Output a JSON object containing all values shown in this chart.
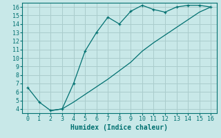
{
  "xlabel": "Humidex (Indice chaleur)",
  "bg_color": "#c8e8e8",
  "grid_color": "#aacccc",
  "line_color": "#007070",
  "line1_x": [
    0,
    1,
    2,
    3,
    4,
    5,
    6,
    7,
    8,
    9,
    10,
    11,
    12,
    13,
    14,
    15,
    16
  ],
  "line1_y": [
    6.5,
    4.8,
    3.8,
    4.0,
    7.0,
    10.8,
    13.0,
    14.8,
    14.0,
    15.5,
    16.2,
    15.7,
    15.4,
    16.0,
    16.2,
    16.2,
    16.0
  ],
  "line2_x": [
    2,
    3,
    4,
    5,
    6,
    7,
    8,
    9,
    10,
    11,
    12,
    13,
    14,
    15,
    16
  ],
  "line2_y": [
    3.8,
    4.0,
    4.8,
    5.7,
    6.6,
    7.5,
    8.5,
    9.5,
    10.8,
    11.8,
    12.7,
    13.6,
    14.5,
    15.4,
    16.0
  ],
  "xlim": [
    -0.5,
    16.5
  ],
  "ylim": [
    3.5,
    16.5
  ],
  "xticks": [
    0,
    1,
    2,
    3,
    4,
    5,
    6,
    7,
    8,
    9,
    10,
    11,
    12,
    13,
    14,
    15,
    16
  ],
  "yticks": [
    4,
    5,
    6,
    7,
    8,
    9,
    10,
    11,
    12,
    13,
    14,
    15,
    16
  ],
  "label_fontsize": 7,
  "tick_fontsize": 6
}
